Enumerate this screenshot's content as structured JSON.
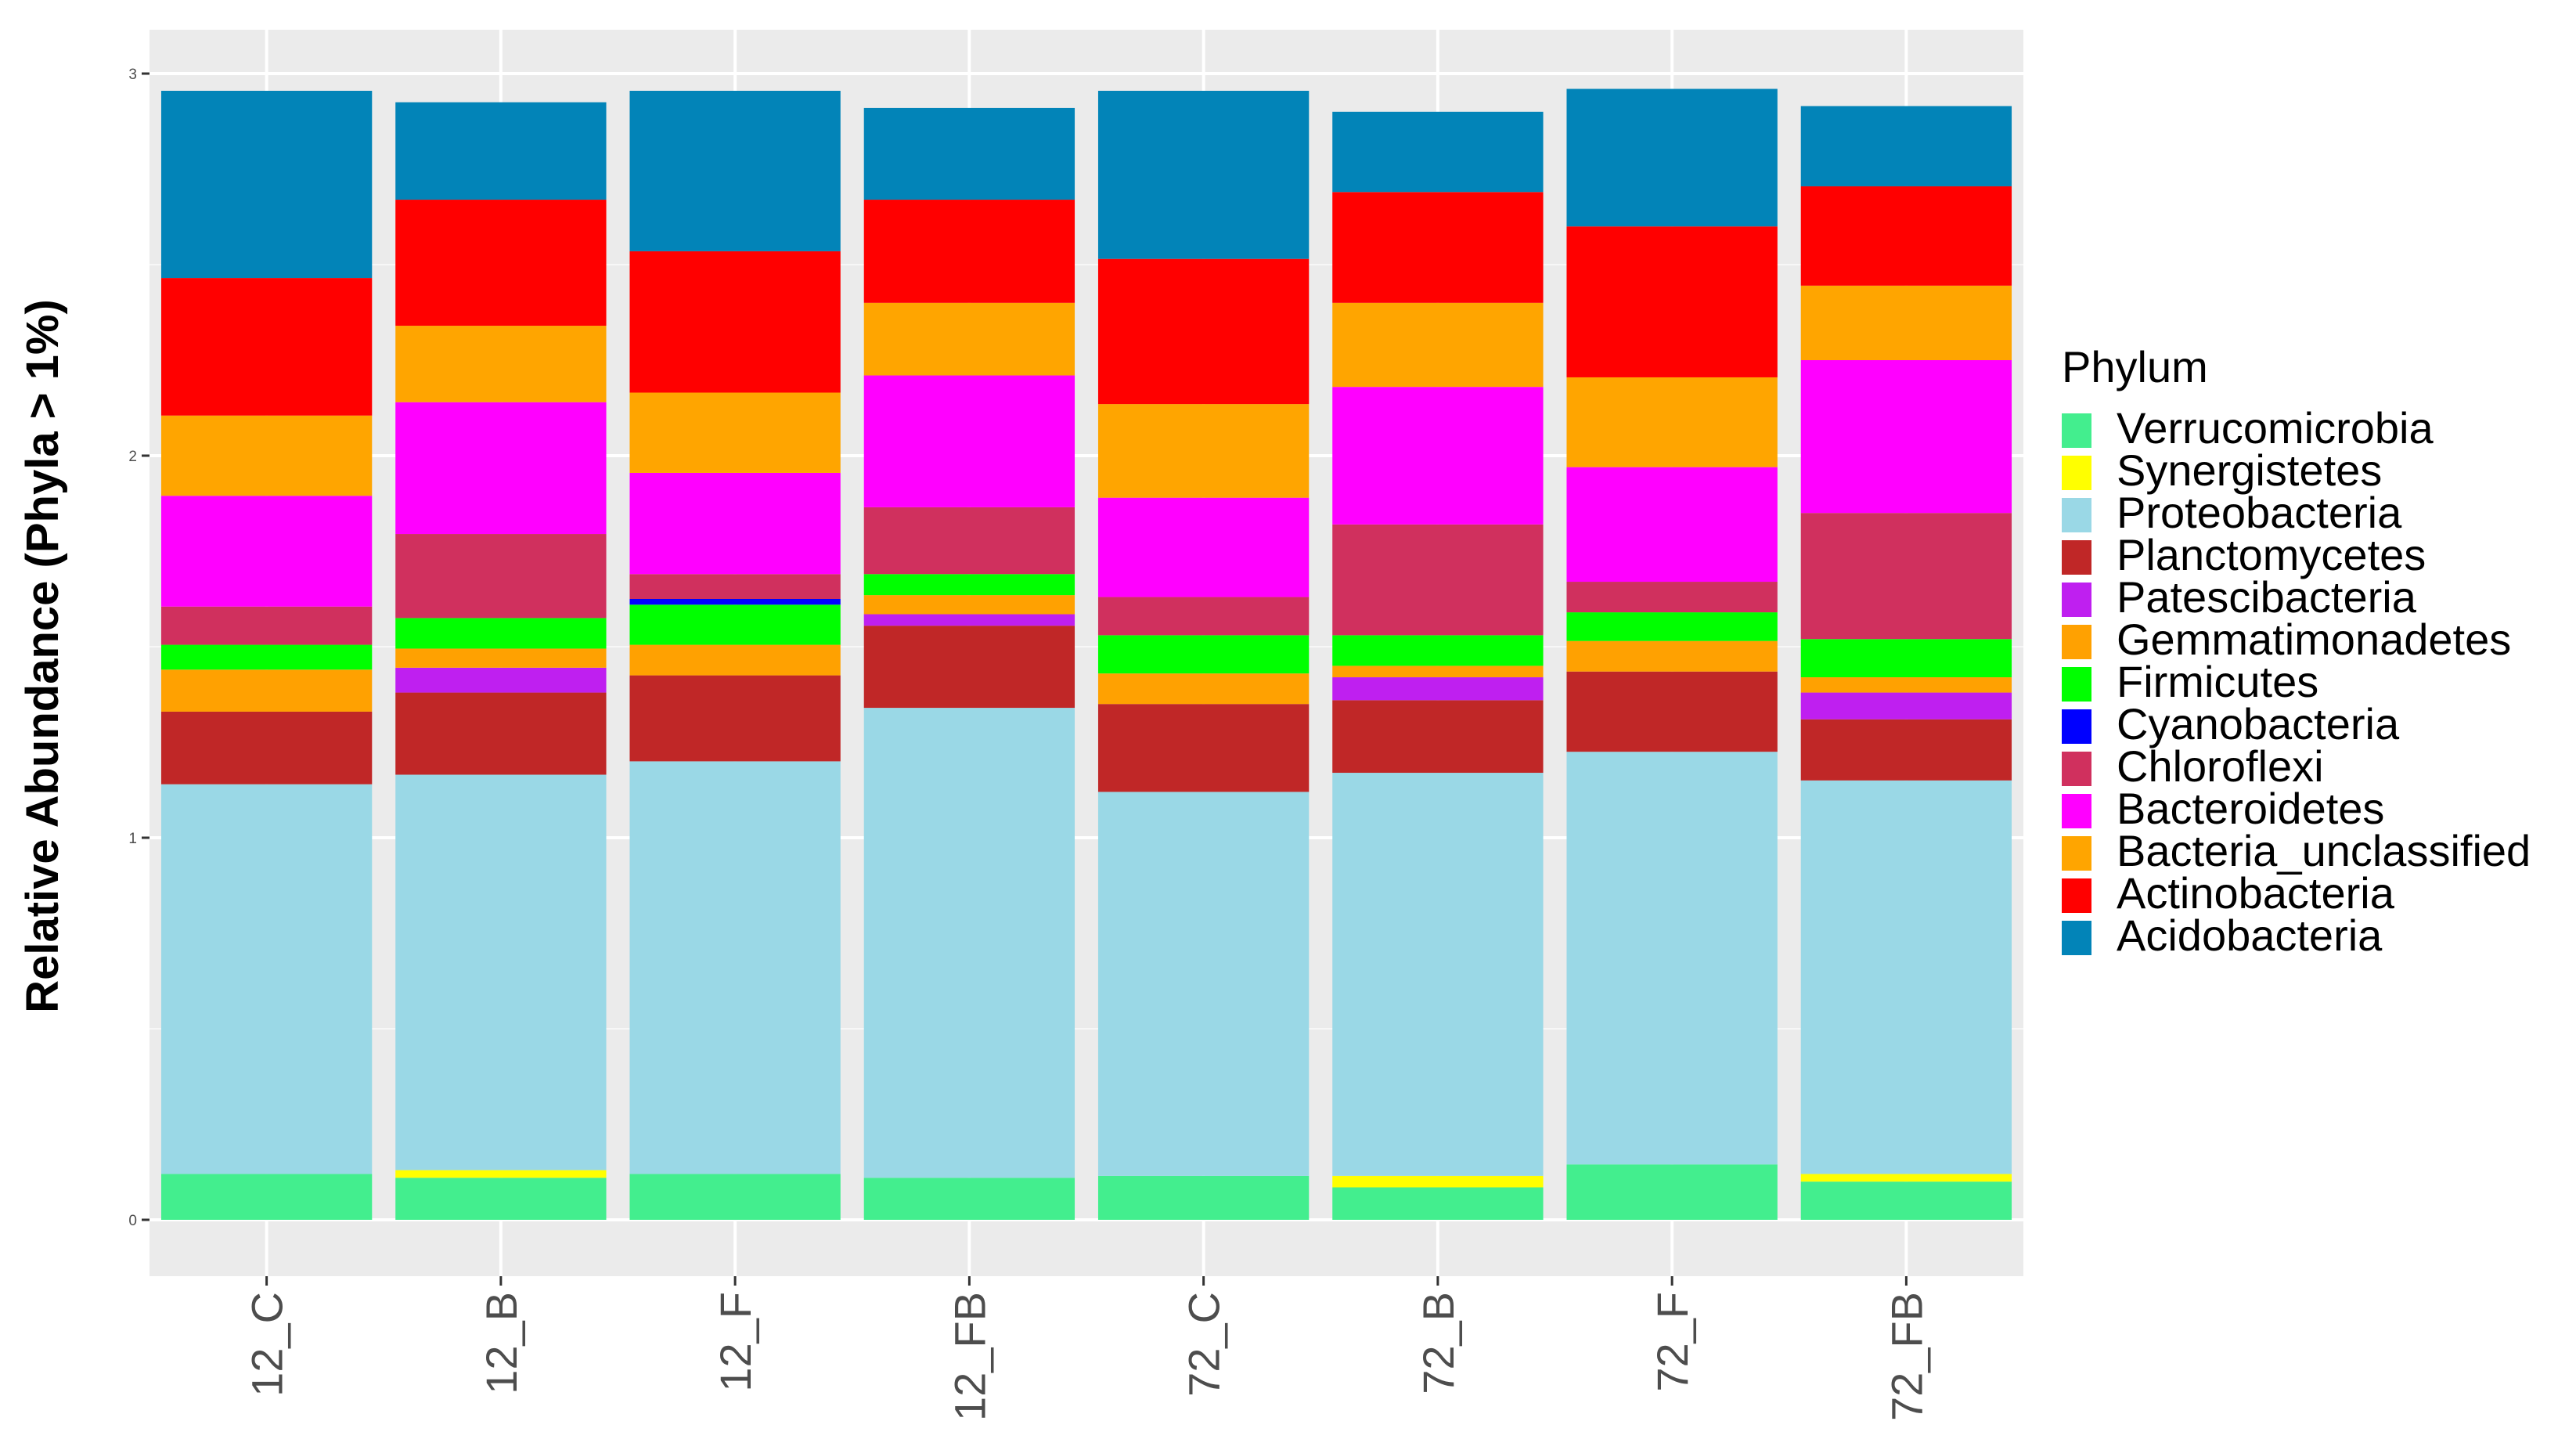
{
  "chart_data": {
    "type": "bar",
    "stacked": true,
    "title": "",
    "xlabel": "",
    "ylabel": "Relative Abundance (Phyla > 1%)",
    "ylim": [
      -0.15,
      3.1
    ],
    "yticks": [
      "0",
      "1",
      "2",
      "3"
    ],
    "grid": true,
    "legend_title": "Phylum",
    "legend_position": "right",
    "categories": [
      "12_C",
      "12_B",
      "12_F",
      "12_FB",
      "72_C",
      "72_B",
      "72_F",
      "72_FB"
    ],
    "series": [
      {
        "name": "Verrucomicrobia",
        "color": "#43EE8E",
        "values": [
          0.12,
          0.11,
          0.12,
          0.11,
          0.115,
          0.085,
          0.145,
          0.1
        ]
      },
      {
        "name": "Synergistetes",
        "color": "#FFFF00",
        "values": [
          0.0,
          0.02,
          0.0,
          0.0,
          0.0,
          0.03,
          0.0,
          0.02
        ]
      },
      {
        "name": "Proteobacteria",
        "color": "#9AD8E6",
        "values": [
          1.02,
          1.035,
          1.08,
          1.23,
          1.005,
          1.055,
          1.08,
          1.03
        ]
      },
      {
        "name": "Planctomycetes",
        "color": "#C02727",
        "values": [
          0.19,
          0.215,
          0.225,
          0.215,
          0.23,
          0.19,
          0.21,
          0.16
        ]
      },
      {
        "name": "Patescibacteria",
        "color": "#BF1FF0",
        "values": [
          0.0,
          0.065,
          0.0,
          0.03,
          0.0,
          0.06,
          0.0,
          0.07
        ]
      },
      {
        "name": "Gemmatimonadetes",
        "color": "#FFA101",
        "values": [
          0.11,
          0.05,
          0.08,
          0.05,
          0.08,
          0.03,
          0.08,
          0.04
        ]
      },
      {
        "name": "Firmicutes",
        "color": "#00FF00",
        "values": [
          0.065,
          0.08,
          0.105,
          0.055,
          0.1,
          0.08,
          0.075,
          0.1
        ]
      },
      {
        "name": "Cyanobacteria",
        "color": "#0000FF",
        "values": [
          0.0,
          0.0,
          0.015,
          0.0,
          0.0,
          0.0,
          0.0,
          0.0
        ]
      },
      {
        "name": "Chloroflexi",
        "color": "#D0305E",
        "values": [
          0.1,
          0.22,
          0.065,
          0.175,
          0.1,
          0.29,
          0.08,
          0.33
        ]
      },
      {
        "name": "Bacteroidetes",
        "color": "#FF00FF",
        "values": [
          0.29,
          0.345,
          0.265,
          0.345,
          0.26,
          0.36,
          0.3,
          0.4
        ]
      },
      {
        "name": "Bacteria_unclassified",
        "color": "#FFA500",
        "values": [
          0.21,
          0.2,
          0.21,
          0.19,
          0.245,
          0.22,
          0.235,
          0.195
        ]
      },
      {
        "name": "Actinobacteria",
        "color": "#FF0000",
        "values": [
          0.36,
          0.33,
          0.37,
          0.27,
          0.38,
          0.29,
          0.395,
          0.26
        ]
      },
      {
        "name": "Acidobacteria",
        "color": "#0284B8",
        "values": [
          0.49,
          0.255,
          0.42,
          0.24,
          0.44,
          0.21,
          0.36,
          0.21
        ]
      }
    ]
  }
}
